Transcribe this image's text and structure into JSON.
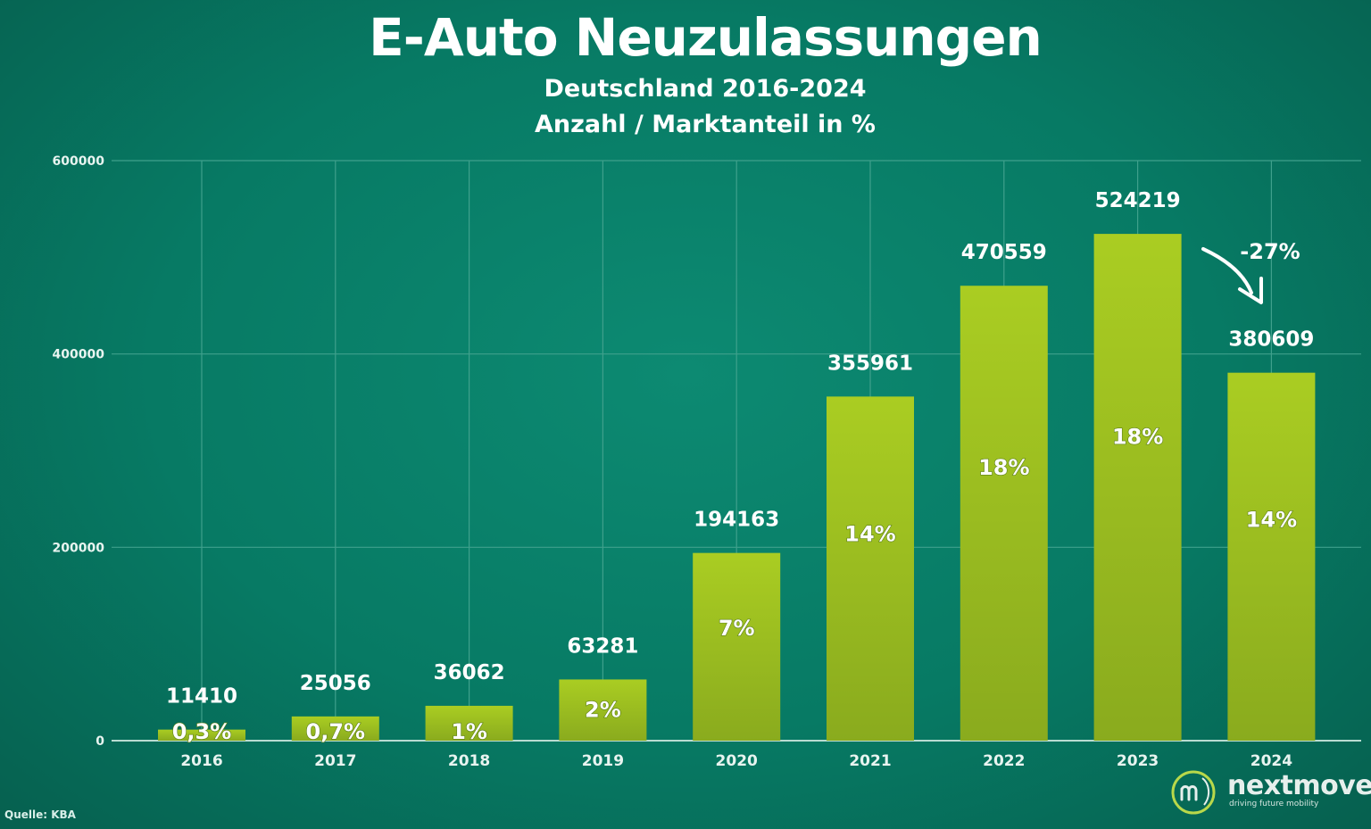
{
  "chart_data": {
    "type": "bar",
    "title": "E-Auto Neuzulassungen",
    "subtitle": [
      "Deutschland 2016-2024",
      "Anzahl / Marktanteil in %"
    ],
    "xlabel": "",
    "ylabel": "",
    "ylim": [
      0,
      600000
    ],
    "yticks": [
      {
        "value": 0,
        "label": "0"
      },
      {
        "value": 200000,
        "label": "200000"
      },
      {
        "value": 400000,
        "label": "400000"
      },
      {
        "value": 600000,
        "label": "600000"
      }
    ],
    "grid": true,
    "legend": "none",
    "categories": [
      "2016",
      "2017",
      "2018",
      "2019",
      "2020",
      "2021",
      "2022",
      "2023",
      "2024"
    ],
    "values": [
      11410,
      25056,
      36062,
      63281,
      194163,
      355961,
      470559,
      524219,
      380609
    ],
    "value_labels": [
      "11410",
      "25056",
      "36062",
      "63281",
      "194163",
      "355961",
      "470559",
      "524219",
      "380609"
    ],
    "share_labels": [
      "0,3%",
      "0,7%",
      "1%",
      "2%",
      "7%",
      "14%",
      "18%",
      "18%",
      "14%"
    ],
    "annotations": [
      {
        "text": "-27%",
        "from": "2023",
        "to": "2024"
      }
    ],
    "colors": {
      "bar_top": "#a9cc21",
      "bar_bottom": "#8aab1e",
      "grid": "#3fa08c",
      "text": "#ffffff"
    }
  },
  "source": "Quelle: KBA",
  "logo": {
    "name": "nextmove",
    "tagline": "driving future mobility",
    "icon": "nextmove-logo-icon"
  }
}
